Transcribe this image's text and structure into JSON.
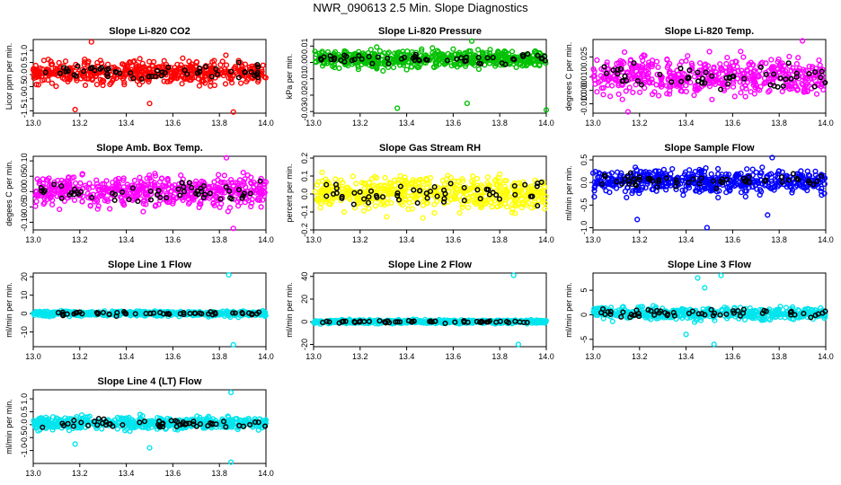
{
  "page": {
    "title": "NWR_090613  2.5 Min. Slope Diagnostics"
  },
  "colors": {
    "co2": "#ff0000",
    "pressure": "#00c000",
    "temp": "#ff00ff",
    "rh": "#ffff00",
    "flow": "#0000ff",
    "line": "#00e5ee",
    "highlight": "#000000"
  },
  "chart_data": [
    {
      "id": "co2",
      "type": "scatter",
      "title": "Slope Li-820 CO2",
      "ylabel": "Licor ppm per min.",
      "xlim": [
        13.0,
        14.0
      ],
      "ylim": [
        -1.6,
        1.45
      ],
      "xticks": [
        13.0,
        13.2,
        13.4,
        13.6,
        13.8,
        14.0
      ],
      "yticks": [
        -1.5,
        -1.0,
        -0.5,
        0.0,
        0.5,
        1.0
      ],
      "ytick_labels": [
        "-1.5",
        "-1.0",
        "-0.5",
        "0.0",
        "0.5",
        "1.0"
      ],
      "color_key": "co2",
      "series_range": [
        13.0,
        14.0,
        -0.8,
        1.0
      ],
      "outliers": [
        [
          13.25,
          1.35
        ],
        [
          13.18,
          -1.45
        ],
        [
          13.86,
          -1.55
        ],
        [
          13.5,
          -1.2
        ]
      ]
    },
    {
      "id": "pressure",
      "type": "scatter",
      "title": "Slope Li-820 Pressure",
      "ylabel": "kPa per min.",
      "xlim": [
        13.0,
        14.0
      ],
      "ylim": [
        -0.031,
        0.014
      ],
      "xticks": [
        13.0,
        13.2,
        13.4,
        13.6,
        13.8,
        14.0
      ],
      "yticks": [
        -0.03,
        -0.02,
        -0.01,
        0.0,
        0.01
      ],
      "ytick_labels": [
        "-0.03",
        "-0.02",
        "-0.01",
        "0.00",
        "0.01"
      ],
      "color_key": "pressure",
      "series_range": [
        13.0,
        14.0,
        -0.008,
        0.012
      ],
      "outliers": [
        [
          13.36,
          -0.028
        ],
        [
          13.66,
          -0.025
        ],
        [
          14.0,
          -0.029
        ],
        [
          13.68,
          0.013
        ]
      ]
    },
    {
      "id": "temp",
      "type": "scatter",
      "title": "Slope Li-820 Temp.",
      "ylabel": "degrees C per min.",
      "xlim": [
        13.0,
        14.0
      ],
      "ylim": [
        -0.017,
        0.038
      ],
      "xticks": [
        13.0,
        13.2,
        13.4,
        13.6,
        13.8,
        14.0
      ],
      "yticks": [
        -0.01,
        0.0,
        0.01,
        0.025
      ],
      "ytick_labels": [
        "-0.010",
        "0.000",
        "0.010",
        "0.025"
      ],
      "color_key": "temp",
      "series_range": [
        13.0,
        14.0,
        -0.015,
        0.036
      ],
      "outliers": [
        [
          13.15,
          -0.016
        ],
        [
          13.9,
          0.037
        ]
      ]
    },
    {
      "id": "ambtemp",
      "type": "scatter",
      "title": "Slope Amb. Box Temp.",
      "ylabel": "degees C per min.",
      "xlim": [
        13.0,
        14.0
      ],
      "ylim": [
        -0.125,
        0.115
      ],
      "xticks": [
        13.0,
        13.2,
        13.4,
        13.6,
        13.8,
        14.0
      ],
      "yticks": [
        -0.1,
        -0.05,
        0.0,
        0.05,
        0.1
      ],
      "ytick_labels": [
        "-0.10",
        "-0.05",
        "0.00",
        "0.05",
        "0.10"
      ],
      "color_key": "temp",
      "series_range": [
        13.0,
        14.0,
        -0.09,
        0.09
      ],
      "outliers": [
        [
          13.83,
          0.11
        ],
        [
          13.86,
          -0.12
        ]
      ]
    },
    {
      "id": "rh",
      "type": "scatter",
      "title": "Slope Gas Stream RH",
      "ylabel": "percent per min.",
      "xlim": [
        13.0,
        14.0
      ],
      "ylim": [
        -0.2,
        0.21
      ],
      "xticks": [
        13.0,
        13.2,
        13.4,
        13.6,
        13.8,
        14.0
      ],
      "yticks": [
        -0.2,
        -0.1,
        0.0,
        0.1,
        0.2
      ],
      "ytick_labels": [
        "-0.2",
        "-0.1",
        "0.0",
        "0.1",
        "0.2"
      ],
      "color_key": "rh",
      "series_range": [
        13.0,
        14.0,
        -0.17,
        0.18
      ],
      "outliers": []
    },
    {
      "id": "sampleflow",
      "type": "scatter",
      "title": "Slope Sample Flow",
      "ylabel": "ml/min per min.",
      "xlim": [
        13.0,
        14.0
      ],
      "ylim": [
        -1.05,
        0.58
      ],
      "xticks": [
        13.0,
        13.2,
        13.4,
        13.6,
        13.8,
        14.0
      ],
      "yticks": [
        -1.0,
        -0.5,
        0.0,
        0.5
      ],
      "ytick_labels": [
        "-1.0",
        "-0.5",
        "0.0",
        "0.5"
      ],
      "color_key": "flow",
      "series_range": [
        13.0,
        14.0,
        -0.45,
        0.5
      ],
      "outliers": [
        [
          13.49,
          -1.0
        ],
        [
          13.75,
          -0.72
        ],
        [
          13.19,
          -0.82
        ],
        [
          13.77,
          0.55
        ]
      ]
    },
    {
      "id": "line1",
      "type": "scatter",
      "title": "Slope Line 1 Flow",
      "ylabel": "ml/min per min.",
      "xlim": [
        13.0,
        14.0
      ],
      "ylim": [
        -18,
        22
      ],
      "xticks": [
        13.0,
        13.2,
        13.4,
        13.6,
        13.8,
        14.0
      ],
      "yticks": [
        -10,
        0,
        10,
        20
      ],
      "ytick_labels": [
        "-10",
        "0",
        "10",
        "20"
      ],
      "color_key": "line",
      "series_range": [
        13.0,
        14.0,
        -2.5,
        2.5
      ],
      "outliers": [
        [
          13.84,
          21
        ],
        [
          13.86,
          -17
        ]
      ]
    },
    {
      "id": "line2",
      "type": "scatter",
      "title": "Slope Line 2 Flow",
      "ylabel": "ml/min per min.",
      "xlim": [
        13.0,
        14.0
      ],
      "ylim": [
        -22,
        43
      ],
      "xticks": [
        13.0,
        13.2,
        13.4,
        13.6,
        13.8,
        14.0
      ],
      "yticks": [
        -20,
        0,
        20,
        40
      ],
      "ytick_labels": [
        "-20",
        "0",
        "20",
        "40"
      ],
      "color_key": "line",
      "series_range": [
        13.0,
        14.0,
        -3,
        3
      ],
      "outliers": [
        [
          13.86,
          41
        ],
        [
          13.88,
          -20
        ]
      ]
    },
    {
      "id": "line3",
      "type": "scatter",
      "title": "Slope Line 3 Flow",
      "ylabel": "ml/min per min.",
      "xlim": [
        13.0,
        14.0
      ],
      "ylim": [
        -6.5,
        8.5
      ],
      "xticks": [
        13.0,
        13.2,
        13.4,
        13.6,
        13.8,
        14.0
      ],
      "yticks": [
        -5,
        0,
        5
      ],
      "ytick_labels": [
        "-5",
        "0",
        "5"
      ],
      "color_key": "line",
      "series_range": [
        13.0,
        14.0,
        -2,
        2.5
      ],
      "outliers": [
        [
          13.45,
          7.5
        ],
        [
          13.52,
          -6
        ],
        [
          13.48,
          5.5
        ],
        [
          13.4,
          -4
        ],
        [
          13.55,
          8
        ]
      ]
    },
    {
      "id": "line4",
      "type": "scatter",
      "title": "Slope Line 4 (LT) Flow",
      "ylabel": "ml/min per min.",
      "xlim": [
        13.0,
        14.0
      ],
      "ylim": [
        -1.5,
        1.35
      ],
      "xticks": [
        13.0,
        13.2,
        13.4,
        13.6,
        13.8,
        14.0
      ],
      "yticks": [
        -1.0,
        -0.5,
        0.0,
        0.5,
        1.0
      ],
      "ytick_labels": [
        "-1.0",
        "-0.5",
        "0.0",
        "0.5",
        "1.0"
      ],
      "color_key": "line",
      "series_range": [
        13.0,
        14.0,
        -0.4,
        0.5
      ],
      "outliers": [
        [
          13.85,
          1.25
        ],
        [
          13.5,
          -0.9
        ],
        [
          13.18,
          -0.75
        ],
        [
          13.85,
          -1.45
        ]
      ]
    }
  ]
}
